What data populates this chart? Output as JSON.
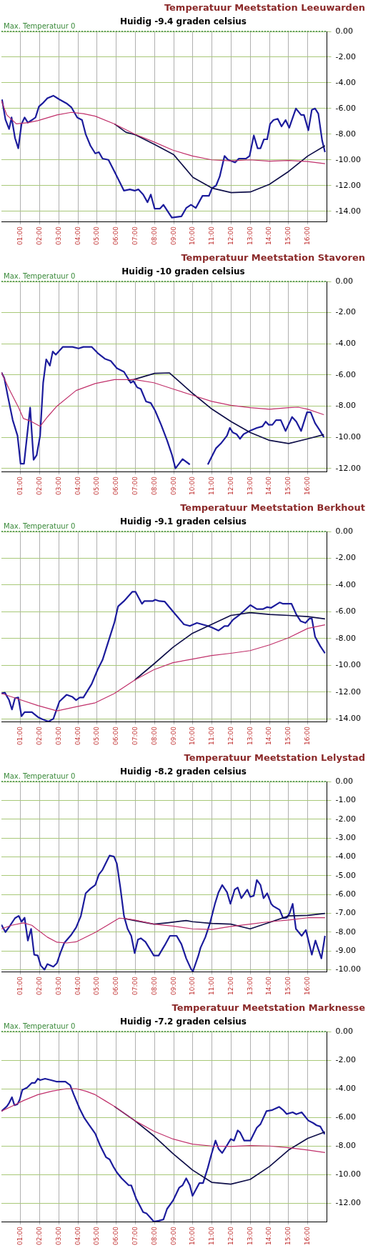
{
  "chart_data": [
    {
      "type": "line",
      "title": "Temperatuur Meetstation Leeuwarden",
      "subtitle": "Huidig -9.4 graden celsius",
      "xlim": [
        0,
        17
      ],
      "xticks": [
        {
          "value": 1,
          "label": "01:00"
        },
        {
          "value": 2,
          "label": "02:00"
        },
        {
          "value": 3,
          "label": "03:00"
        },
        {
          "value": 4,
          "label": "04:00"
        },
        {
          "value": 5,
          "label": "05:00"
        },
        {
          "value": 6,
          "label": "06:00"
        },
        {
          "value": 7,
          "label": "07:00"
        },
        {
          "value": 8,
          "label": "08:00"
        },
        {
          "value": 9,
          "label": "09:00"
        },
        {
          "value": 10,
          "label": "10:00"
        },
        {
          "value": 11,
          "label": "11:00"
        },
        {
          "value": 12,
          "label": "12:00"
        },
        {
          "value": 13,
          "label": "13:00"
        },
        {
          "value": 14,
          "label": "14:00"
        },
        {
          "value": 15,
          "label": "15:00"
        },
        {
          "value": 16,
          "label": "16:00"
        }
      ],
      "ylim": [
        -14.8,
        0
      ],
      "yticks": [
        {
          "value": 0,
          "label": "0.00"
        },
        {
          "value": -2,
          "label": "-2.00"
        },
        {
          "value": -4,
          "label": "-4.00"
        },
        {
          "value": -6,
          "label": "-6.00"
        },
        {
          "value": -8,
          "label": "-8.00"
        },
        {
          "value": -10,
          "label": "-10.00"
        },
        {
          "value": -12,
          "label": "-12.00"
        },
        {
          "value": -14,
          "label": "-14.00"
        }
      ],
      "grid": true,
      "marker": "none",
      "ref_lines": [
        {
          "axis": "y",
          "value": 0,
          "label": "Max. Temperatuur 0",
          "color": "#3a8a3a",
          "line_style": "dotted"
        }
      ],
      "series": [
        {
          "color": "#c0306a",
          "x": [
            0,
            0.28,
            0.78,
            1.4,
            1.9,
            2.9,
            3.65,
            4.28,
            4.9,
            5.9,
            6.96,
            7.96,
            8.96,
            9.98,
            10.98,
            11.98,
            12.99,
            14,
            15,
            16,
            16.9
          ],
          "values": [
            -5.4,
            -6.5,
            -7.2,
            -7.1,
            -6.95,
            -6.5,
            -6.3,
            -6.4,
            -6.6,
            -7.2,
            -8.0,
            -8.6,
            -9.25,
            -9.7,
            -10.0,
            -10.07,
            -10.0,
            -10.1,
            -10.05,
            -10.13,
            -10.3
          ]
        },
        {
          "color": "#10104a",
          "x": [
            5.9,
            6.5,
            7,
            8,
            9,
            10,
            11,
            12,
            13,
            14,
            15,
            16,
            16.9
          ],
          "values": [
            -7.2,
            -7.85,
            -8.05,
            -8.8,
            -9.6,
            -11.36,
            -12.2,
            -12.55,
            -12.5,
            -11.9,
            -10.9,
            -9.7,
            -8.9
          ]
        },
        {
          "color": "#1c1c9c",
          "x": [
            0.03,
            0.21,
            0.4,
            0.53,
            0.71,
            0.88,
            1.05,
            1.21,
            1.38,
            1.59,
            1.78,
            1.96,
            2.15,
            2.4,
            2.71,
            3.03,
            3.4,
            3.65,
            3.96,
            4.21,
            4.4,
            4.65,
            4.9,
            5.09,
            5.28,
            5.59,
            5.9,
            6.4,
            6.71,
            6.96,
            7.15,
            7.4,
            7.63,
            7.8,
            8.0,
            8.28,
            8.46,
            8.9,
            9.4,
            9.65,
            9.9,
            10.15,
            10.5,
            10.84,
            11.0,
            11.21,
            11.4,
            11.65,
            11.84,
            12.21,
            12.4,
            12.78,
            12.96,
            13.18,
            13.38,
            13.53,
            13.71,
            13.88,
            14.03,
            14.21,
            14.43,
            14.63,
            14.84,
            15.03,
            15.38,
            15.65,
            15.8,
            16.03,
            16.21,
            16.38,
            16.55,
            16.75,
            16.9
          ],
          "values": [
            -5.3,
            -6.86,
            -7.6,
            -6.7,
            -8.3,
            -9.1,
            -7.2,
            -6.7,
            -7.1,
            -6.9,
            -6.7,
            -5.85,
            -5.6,
            -5.2,
            -5.0,
            -5.3,
            -5.6,
            -5.9,
            -6.7,
            -6.9,
            -8.0,
            -8.9,
            -9.5,
            -9.4,
            -9.9,
            -10.0,
            -10.9,
            -12.4,
            -12.3,
            -12.4,
            -12.3,
            -12.7,
            -13.3,
            -12.7,
            -13.8,
            -13.8,
            -13.5,
            -14.5,
            -14.4,
            -13.75,
            -13.5,
            -13.75,
            -12.8,
            -12.8,
            -12.2,
            -12.0,
            -11.3,
            -9.7,
            -10.0,
            -10.2,
            -9.9,
            -9.9,
            -9.7,
            -8.1,
            -9.1,
            -9.1,
            -8.4,
            -8.4,
            -7.2,
            -6.9,
            -6.8,
            -7.4,
            -6.9,
            -7.5,
            -6.0,
            -6.5,
            -6.5,
            -7.7,
            -6.1,
            -6.0,
            -6.4,
            -8.5,
            -9.4
          ]
        }
      ]
    },
    {
      "type": "line",
      "title": "Temperatuur Meetstation Stavoren",
      "subtitle": "Huidig -10 graden celsius",
      "xlim": [
        0,
        17
      ],
      "xticks": [
        {
          "value": 1,
          "label": "01:00"
        },
        {
          "value": 2,
          "label": "02:00"
        },
        {
          "value": 3,
          "label": "03:00"
        },
        {
          "value": 4,
          "label": "04:00"
        },
        {
          "value": 5,
          "label": "05:00"
        },
        {
          "value": 6,
          "label": "06:00"
        },
        {
          "value": 7,
          "label": "07:00"
        },
        {
          "value": 8,
          "label": "08:00"
        },
        {
          "value": 9,
          "label": "09:00"
        },
        {
          "value": 10,
          "label": "10:00"
        },
        {
          "value": 11,
          "label": "11:00"
        },
        {
          "value": 12,
          "label": "12:00"
        },
        {
          "value": 13,
          "label": "13:00"
        },
        {
          "value": 14,
          "label": "14:00"
        },
        {
          "value": 15,
          "label": "15:00"
        },
        {
          "value": 16,
          "label": "16:00"
        }
      ],
      "ylim": [
        -12.2,
        0
      ],
      "yticks": [
        {
          "value": 0,
          "label": "0.00"
        },
        {
          "value": -2,
          "label": "-2.00"
        },
        {
          "value": -4,
          "label": "-4.00"
        },
        {
          "value": -6,
          "label": "-6.00"
        },
        {
          "value": -8,
          "label": "-8.00"
        },
        {
          "value": -10,
          "label": "-10.00"
        },
        {
          "value": -12,
          "label": "-12.00"
        }
      ],
      "grid": true,
      "marker": "none",
      "ref_lines": [
        {
          "axis": "y",
          "value": 0,
          "label": "Max. Temperatuur 0",
          "color": "#3a8a3a",
          "line_style": "dotted"
        }
      ],
      "series": [
        {
          "color": "#c0306a",
          "x": [
            0,
            0.4,
            0.9,
            1.15,
            1.52,
            2.02,
            2.4,
            2.9,
            3.9,
            4.9,
            5.9,
            6.96,
            7.96,
            8.96,
            9.98,
            10.98,
            11.98,
            12.99,
            14,
            15,
            15.5,
            16,
            16.84
          ],
          "values": [
            -5.84,
            -6.9,
            -8.1,
            -8.8,
            -8.96,
            -9.3,
            -8.7,
            -8.0,
            -7.0,
            -6.55,
            -6.3,
            -6.3,
            -6.5,
            -6.9,
            -7.3,
            -7.7,
            -7.95,
            -8.1,
            -8.2,
            -8.1,
            -8.07,
            -8.2,
            -8.55
          ]
        },
        {
          "color": "#10104a",
          "x": [
            6.6,
            6.9,
            8.0,
            8.78,
            10,
            11,
            12,
            13,
            14,
            15,
            16,
            16.84
          ],
          "values": [
            -6.35,
            -6.3,
            -5.9,
            -5.87,
            -7.2,
            -8.2,
            -9.0,
            -9.7,
            -10.2,
            -10.4,
            -10.1,
            -9.83
          ]
        },
        {
          "color": "#1c1c9c",
          "x": [
            0,
            0.15,
            0.34,
            0.59,
            0.84,
            1.0,
            1.18,
            1.34,
            1.5,
            1.68,
            1.84,
            2.02,
            2.18,
            2.34,
            2.53,
            2.68,
            2.84,
            3.21,
            3.71,
            4.03,
            4.28,
            4.71,
            5.03,
            5.4,
            5.71,
            6.03,
            6.4,
            6.75,
            6.9,
            7.09,
            7.28,
            7.55,
            7.8,
            8.03,
            8.34,
            8.65,
            8.9,
            9.09,
            9.46,
            9.84,
            10.09,
            10.59,
            10.78,
            10.96,
            11.21,
            11.46,
            11.78,
            11.93,
            12.09,
            12.28,
            12.46,
            12.65,
            12.96,
            13.34,
            13.63,
            13.8,
            13.96,
            14.15,
            14.34,
            14.59,
            14.84,
            15.18,
            15.4,
            15.65,
            15.96,
            16.15,
            16.38,
            16.65,
            16.84
          ],
          "values": [
            -5.84,
            -6.2,
            -7.4,
            -8.9,
            -9.9,
            -11.7,
            -11.7,
            -9.9,
            -8.1,
            -11.45,
            -11.15,
            -9.9,
            -6.5,
            -5.0,
            -5.4,
            -4.5,
            -4.7,
            -4.2,
            -4.2,
            -4.3,
            -4.2,
            -4.2,
            -4.6,
            -4.96,
            -5.1,
            -5.57,
            -5.8,
            -6.5,
            -6.4,
            -6.8,
            -6.9,
            -7.7,
            -7.8,
            -8.3,
            -9.2,
            -10.2,
            -11.1,
            -12.0,
            -11.4,
            -11.75,
            null,
            null,
            -11.75,
            -11.3,
            -10.7,
            -10.4,
            -9.9,
            -9.4,
            -9.7,
            -9.8,
            -10.1,
            -9.8,
            -9.6,
            -9.4,
            -9.3,
            -9.0,
            -9.2,
            -9.2,
            -8.9,
            -8.9,
            -9.6,
            -8.7,
            -9.0,
            -9.6,
            -8.4,
            -8.4,
            -9.1,
            -9.6,
            -10.0
          ]
        }
      ]
    },
    {
      "type": "line",
      "title": "Temperatuur Meetstation Berkhout",
      "subtitle": "Huidig -9.1 graden celsius",
      "xlim": [
        0,
        17
      ],
      "xticks": [
        {
          "value": 1,
          "label": "01:00"
        },
        {
          "value": 2,
          "label": "02:00"
        },
        {
          "value": 3,
          "label": "03:00"
        },
        {
          "value": 4,
          "label": "04:00"
        },
        {
          "value": 5,
          "label": "05:00"
        },
        {
          "value": 6,
          "label": "06:00"
        },
        {
          "value": 7,
          "label": "07:00"
        },
        {
          "value": 8,
          "label": "08:00"
        },
        {
          "value": 9,
          "label": "09:00"
        },
        {
          "value": 10,
          "label": "10:00"
        },
        {
          "value": 11,
          "label": "11:00"
        },
        {
          "value": 12,
          "label": "12:00"
        },
        {
          "value": 13,
          "label": "13:00"
        },
        {
          "value": 14,
          "label": "14:00"
        },
        {
          "value": 15,
          "label": "15:00"
        },
        {
          "value": 16,
          "label": "16:00"
        }
      ],
      "ylim": [
        -14.2,
        0
      ],
      "yticks": [
        {
          "value": 0,
          "label": "0.00"
        },
        {
          "value": -2,
          "label": "-2.00"
        },
        {
          "value": -4,
          "label": "-4.00"
        },
        {
          "value": -6,
          "label": "-6.00"
        },
        {
          "value": -8,
          "label": "-8.00"
        },
        {
          "value": -10,
          "label": "-10.00"
        },
        {
          "value": -12,
          "label": "-12.00"
        },
        {
          "value": -14,
          "label": "-14.00"
        }
      ],
      "grid": true,
      "marker": "none",
      "ref_lines": [
        {
          "axis": "y",
          "value": 0,
          "label": "Max. Temperatuur 0",
          "color": "#3a8a3a",
          "line_style": "dotted"
        }
      ],
      "series": [
        {
          "color": "#c0306a",
          "x": [
            0,
            0.9,
            1.9,
            2.9,
            3.9,
            4.9,
            5.9,
            6.96,
            7.96,
            8.96,
            9.98,
            10.98,
            11.98,
            12.99,
            14,
            15,
            16,
            16.9
          ],
          "values": [
            -12.1,
            -12.53,
            -13.0,
            -13.4,
            -13.1,
            -12.8,
            -12.1,
            -11.1,
            -10.33,
            -9.8,
            -9.53,
            -9.27,
            -9.1,
            -8.9,
            -8.47,
            -7.94,
            -7.24,
            -6.97
          ]
        },
        {
          "color": "#10104a",
          "x": [
            6.96,
            7.96,
            8.96,
            9.98,
            10.98,
            11.98,
            12.99,
            14,
            15,
            16,
            16.9
          ],
          "values": [
            -11.1,
            -9.9,
            -8.65,
            -7.6,
            -6.94,
            -6.27,
            -6.06,
            -6.2,
            -6.27,
            -6.36,
            -6.53
          ]
        },
        {
          "color": "#1c1c9c",
          "x": [
            0,
            0.18,
            0.4,
            0.55,
            0.71,
            0.88,
            1.05,
            1.21,
            1.59,
            1.9,
            2.15,
            2.46,
            2.71,
            3.03,
            3.4,
            3.71,
            3.9,
            4.09,
            4.28,
            4.71,
            5.03,
            5.28,
            5.59,
            5.9,
            6.09,
            6.4,
            6.84,
            7.0,
            7.34,
            7.46,
            7.9,
            8.03,
            8.25,
            8.53,
            9.03,
            9.53,
            9.84,
            10.21,
            10.78,
            10.96,
            11.34,
            11.65,
            11.84,
            12.09,
            12.4,
            13.0,
            13.34,
            13.65,
            13.88,
            14.09,
            14.53,
            14.71,
            15.15,
            15.4,
            15.63,
            15.88,
            16.09,
            16.21,
            16.38,
            16.65,
            16.9
          ],
          "values": [
            -12.1,
            -12.04,
            -12.6,
            -13.3,
            -12.45,
            -12.4,
            -13.8,
            -13.5,
            -13.5,
            -13.86,
            -14.04,
            -14.2,
            -14.0,
            -12.7,
            -12.2,
            -12.36,
            -12.6,
            -12.4,
            -12.4,
            -11.4,
            -10.3,
            -9.6,
            -8.2,
            -6.8,
            -5.6,
            -5.2,
            -4.5,
            -4.5,
            -5.4,
            -5.2,
            -5.2,
            -5.1,
            -5.2,
            -5.24,
            -6.1,
            -6.94,
            -7.06,
            -6.83,
            -7.06,
            -7.15,
            -7.4,
            -7.06,
            -7.06,
            -6.6,
            -6.27,
            -5.5,
            -5.8,
            -5.8,
            -5.65,
            -5.7,
            -5.3,
            -5.4,
            -5.4,
            -6.2,
            -6.7,
            -6.83,
            -6.5,
            -6.5,
            -7.86,
            -8.56,
            -9.1
          ]
        }
      ]
    },
    {
      "type": "line",
      "title": "Temperatuur Meetstation Lelystad",
      "subtitle": "Huidig -8.2 graden celsius",
      "xlim": [
        0,
        17
      ],
      "xticks": [
        {
          "value": 1,
          "label": "01:00"
        },
        {
          "value": 2,
          "label": "02:00"
        },
        {
          "value": 3,
          "label": "03:00"
        },
        {
          "value": 4,
          "label": "04:00"
        },
        {
          "value": 5,
          "label": "05:00"
        },
        {
          "value": 6,
          "label": "06:00"
        },
        {
          "value": 7,
          "label": "07:00"
        },
        {
          "value": 8,
          "label": "08:00"
        },
        {
          "value": 9,
          "label": "09:00"
        },
        {
          "value": 10,
          "label": "10:00"
        },
        {
          "value": 11,
          "label": "11:00"
        },
        {
          "value": 12,
          "label": "12:00"
        },
        {
          "value": 13,
          "label": "13:00"
        },
        {
          "value": 14,
          "label": "14:00"
        },
        {
          "value": 15,
          "label": "15:00"
        },
        {
          "value": 16,
          "label": "16:00"
        }
      ],
      "ylim": [
        -10.1,
        0
      ],
      "yticks": [
        {
          "value": 0,
          "label": "0.00"
        },
        {
          "value": -1,
          "label": "-1.00"
        },
        {
          "value": -2,
          "label": "-2.00"
        },
        {
          "value": -3,
          "label": "-3.00"
        },
        {
          "value": -4,
          "label": "-4.00"
        },
        {
          "value": -5,
          "label": "-5.00"
        },
        {
          "value": -6,
          "label": "-6.00"
        },
        {
          "value": -7,
          "label": "-7.00"
        },
        {
          "value": -8,
          "label": "-8.00"
        },
        {
          "value": -9,
          "label": "-9.00"
        },
        {
          "value": -10,
          "label": "-10.00"
        }
      ],
      "grid": true,
      "marker": "none",
      "ref_lines": [
        {
          "axis": "y",
          "value": 0,
          "label": "Max. Temperatuur 0",
          "color": "#3a8a3a",
          "line_style": "dotted"
        }
      ],
      "series": [
        {
          "color": "#c0306a",
          "x": [
            0,
            0.53,
            1.15,
            1.59,
            1.9,
            2.4,
            2.9,
            3.4,
            3.9,
            4.9,
            5.53,
            6.15,
            6.53,
            6.96,
            7.96,
            8.96,
            9.98,
            10.98,
            11.98,
            12.99,
            14,
            15,
            16,
            16.9
          ],
          "values": [
            -7.83,
            -7.64,
            -7.51,
            -7.64,
            -7.89,
            -8.27,
            -8.54,
            -8.58,
            -8.52,
            -8.02,
            -7.64,
            -7.26,
            -7.29,
            -7.36,
            -7.58,
            -7.68,
            -7.83,
            -7.86,
            -7.7,
            -7.58,
            -7.45,
            -7.36,
            -7.24,
            -7.24
          ]
        },
        {
          "color": "#10104a",
          "x": [
            6.4,
            6.96,
            7.96,
            8.65,
            9.65,
            9.98,
            10.98,
            11.98,
            12.99,
            14,
            15,
            16,
            16.9
          ],
          "values": [
            -7.28,
            -7.39,
            -7.58,
            -7.51,
            -7.39,
            -7.45,
            -7.54,
            -7.58,
            -7.83,
            -7.49,
            -7.14,
            -7.11,
            -7.01
          ]
        },
        {
          "color": "#1c1c9c",
          "x": [
            0,
            0.21,
            0.46,
            0.71,
            0.9,
            1.05,
            1.21,
            1.38,
            1.55,
            1.71,
            1.9,
            2.05,
            2.25,
            2.4,
            2.71,
            2.9,
            3.09,
            3.28,
            3.65,
            3.9,
            4.15,
            4.4,
            4.65,
            4.9,
            5.09,
            5.28,
            5.65,
            5.88,
            6.03,
            6.21,
            6.4,
            6.59,
            6.78,
            6.96,
            7.13,
            7.28,
            7.52,
            7.71,
            7.96,
            8.21,
            8.53,
            8.8,
            9.15,
            9.4,
            9.65,
            9.9,
            10.0,
            10.28,
            10.4,
            10.65,
            10.9,
            11.15,
            11.34,
            11.53,
            11.78,
            11.96,
            12.18,
            12.34,
            12.53,
            12.84,
            13.0,
            13.18,
            13.34,
            13.53,
            13.69,
            13.88,
            14.09,
            14.21,
            14.53,
            14.71,
            14.9,
            15.05,
            15.21,
            15.38,
            15.68,
            15.9,
            16.21,
            16.4,
            16.71,
            16.9
          ],
          "values": [
            -7.61,
            -8.0,
            -7.64,
            -7.26,
            -7.14,
            -7.45,
            -7.24,
            -8.45,
            -7.83,
            -9.2,
            -9.25,
            -9.77,
            -10.0,
            -9.7,
            -9.84,
            -9.65,
            -9.08,
            -8.58,
            -8.14,
            -7.76,
            -7.14,
            -5.94,
            -5.69,
            -5.5,
            -4.94,
            -4.69,
            -3.93,
            -3.99,
            -4.37,
            -5.63,
            -7.14,
            -7.83,
            -8.2,
            -9.12,
            -8.4,
            -8.33,
            -8.52,
            -8.83,
            -9.25,
            -9.25,
            -8.7,
            -8.2,
            -8.2,
            -8.64,
            -9.4,
            -9.96,
            -10.09,
            -9.27,
            -8.83,
            -8.27,
            -7.5,
            -6.5,
            -5.88,
            -5.5,
            -5.88,
            -6.5,
            -5.75,
            -5.63,
            -6.2,
            -5.75,
            -6.13,
            -6.07,
            -5.23,
            -5.5,
            -6.2,
            -5.94,
            -6.5,
            -6.63,
            -6.82,
            -7.26,
            -7.24,
            -7.0,
            -6.5,
            -7.83,
            -8.2,
            -7.89,
            -9.2,
            -8.45,
            -9.4,
            -8.2
          ]
        }
      ]
    },
    {
      "type": "line",
      "title": "Temperatuur Meetstation Marknesse",
      "subtitle": "Huidig -7.2 graden celsius",
      "xlim": [
        0,
        17
      ],
      "xticks": [
        {
          "value": 1,
          "label": "01:00"
        },
        {
          "value": 2,
          "label": "02:00"
        },
        {
          "value": 3,
          "label": "03:00"
        },
        {
          "value": 4,
          "label": "04:00"
        },
        {
          "value": 5,
          "label": "05:00"
        },
        {
          "value": 6,
          "label": "06:00"
        },
        {
          "value": 7,
          "label": "07:00"
        },
        {
          "value": 8,
          "label": "08:00"
        },
        {
          "value": 9,
          "label": "09:00"
        },
        {
          "value": 10,
          "label": "10:00"
        },
        {
          "value": 11,
          "label": "11:00"
        },
        {
          "value": 12,
          "label": "12:00"
        },
        {
          "value": 13,
          "label": "13:00"
        },
        {
          "value": 14,
          "label": "14:00"
        },
        {
          "value": 15,
          "label": "15:00"
        },
        {
          "value": 16,
          "label": "16:00"
        }
      ],
      "ylim": [
        -13.3,
        0
      ],
      "yticks": [
        {
          "value": 0,
          "label": "0.00"
        },
        {
          "value": -2,
          "label": "-2.00"
        },
        {
          "value": -4,
          "label": "-4.00"
        },
        {
          "value": -6,
          "label": "-6.00"
        },
        {
          "value": -8,
          "label": "-8.00"
        },
        {
          "value": -10,
          "label": "-10.00"
        },
        {
          "value": -12,
          "label": "-12.00"
        }
      ],
      "grid": true,
      "marker": "none",
      "ref_lines": [
        {
          "axis": "y",
          "value": 0,
          "label": "Max. Temperatuur 0",
          "color": "#3a8a3a",
          "line_style": "dotted"
        }
      ],
      "series": [
        {
          "color": "#c0306a",
          "x": [
            0,
            0.65,
            1.15,
            1.9,
            2.65,
            3.4,
            3.9,
            4.4,
            4.9,
            5.4,
            5.9,
            6.96,
            7.96,
            8.96,
            9.98,
            10.98,
            11.98,
            12.99,
            14,
            15,
            16,
            16.9
          ],
          "values": [
            -5.57,
            -5.16,
            -4.83,
            -4.42,
            -4.17,
            -4.0,
            -4.0,
            -4.17,
            -4.42,
            -4.83,
            -5.24,
            -6.23,
            -6.97,
            -7.52,
            -7.88,
            -8.01,
            -8.04,
            -7.98,
            -8.01,
            -8.13,
            -8.29,
            -8.47
          ]
        },
        {
          "color": "#10104a",
          "x": [
            5.9,
            6.96,
            7.96,
            8.96,
            9.98,
            10.98,
            11.98,
            12.99,
            14,
            15,
            16,
            16.9
          ],
          "values": [
            -5.24,
            -6.23,
            -7.3,
            -8.54,
            -9.69,
            -10.55,
            -10.68,
            -10.35,
            -9.44,
            -8.29,
            -7.47,
            -7.02
          ]
        },
        {
          "color": "#1c1c9c",
          "x": [
            0,
            0.28,
            0.4,
            0.55,
            0.68,
            0.84,
            0.96,
            1.09,
            1.34,
            1.59,
            1.75,
            1.9,
            2.02,
            2.28,
            2.59,
            2.9,
            3.34,
            3.59,
            3.78,
            4.09,
            4.34,
            4.59,
            4.9,
            5.15,
            5.46,
            5.65,
            5.84,
            6.03,
            6.28,
            6.65,
            6.78,
            7.03,
            7.4,
            7.59,
            7.96,
            8.21,
            8.46,
            8.65,
            8.96,
            9.28,
            9.46,
            9.65,
            9.84,
            9.98,
            10.34,
            10.53,
            10.78,
            10.96,
            11.18,
            11.34,
            11.53,
            11.78,
            11.98,
            12.15,
            12.34,
            12.46,
            12.68,
            13.0,
            13.34,
            13.53,
            13.84,
            14.15,
            14.5,
            14.71,
            14.9,
            15.21,
            15.4,
            15.68,
            16.03,
            16.28,
            16.46,
            16.65,
            16.88
          ],
          "values": [
            -5.57,
            -5.24,
            -5.0,
            -4.6,
            -5.16,
            -5.08,
            -4.75,
            -4.09,
            -3.92,
            -3.59,
            -3.59,
            -3.3,
            -3.4,
            -3.3,
            -3.4,
            -3.51,
            -3.51,
            -3.76,
            -4.42,
            -5.41,
            -6.07,
            -6.56,
            -7.14,
            -7.96,
            -8.79,
            -8.95,
            -9.44,
            -9.86,
            -10.27,
            -10.76,
            -10.76,
            -11.67,
            -12.63,
            -12.74,
            -13.3,
            -13.24,
            -13.15,
            -12.41,
            -11.83,
            -10.93,
            -10.76,
            -10.27,
            -10.76,
            -11.5,
            -10.6,
            -10.6,
            -9.53,
            -8.62,
            -7.63,
            -8.21,
            -8.5,
            -7.96,
            -7.52,
            -7.63,
            -6.92,
            -7.05,
            -7.63,
            -7.63,
            -6.72,
            -6.48,
            -5.57,
            -5.49,
            -5.27,
            -5.49,
            -5.77,
            -5.65,
            -5.79,
            -5.65,
            -6.23,
            -6.4,
            -6.56,
            -6.64,
            -7.19
          ]
        }
      ]
    }
  ]
}
